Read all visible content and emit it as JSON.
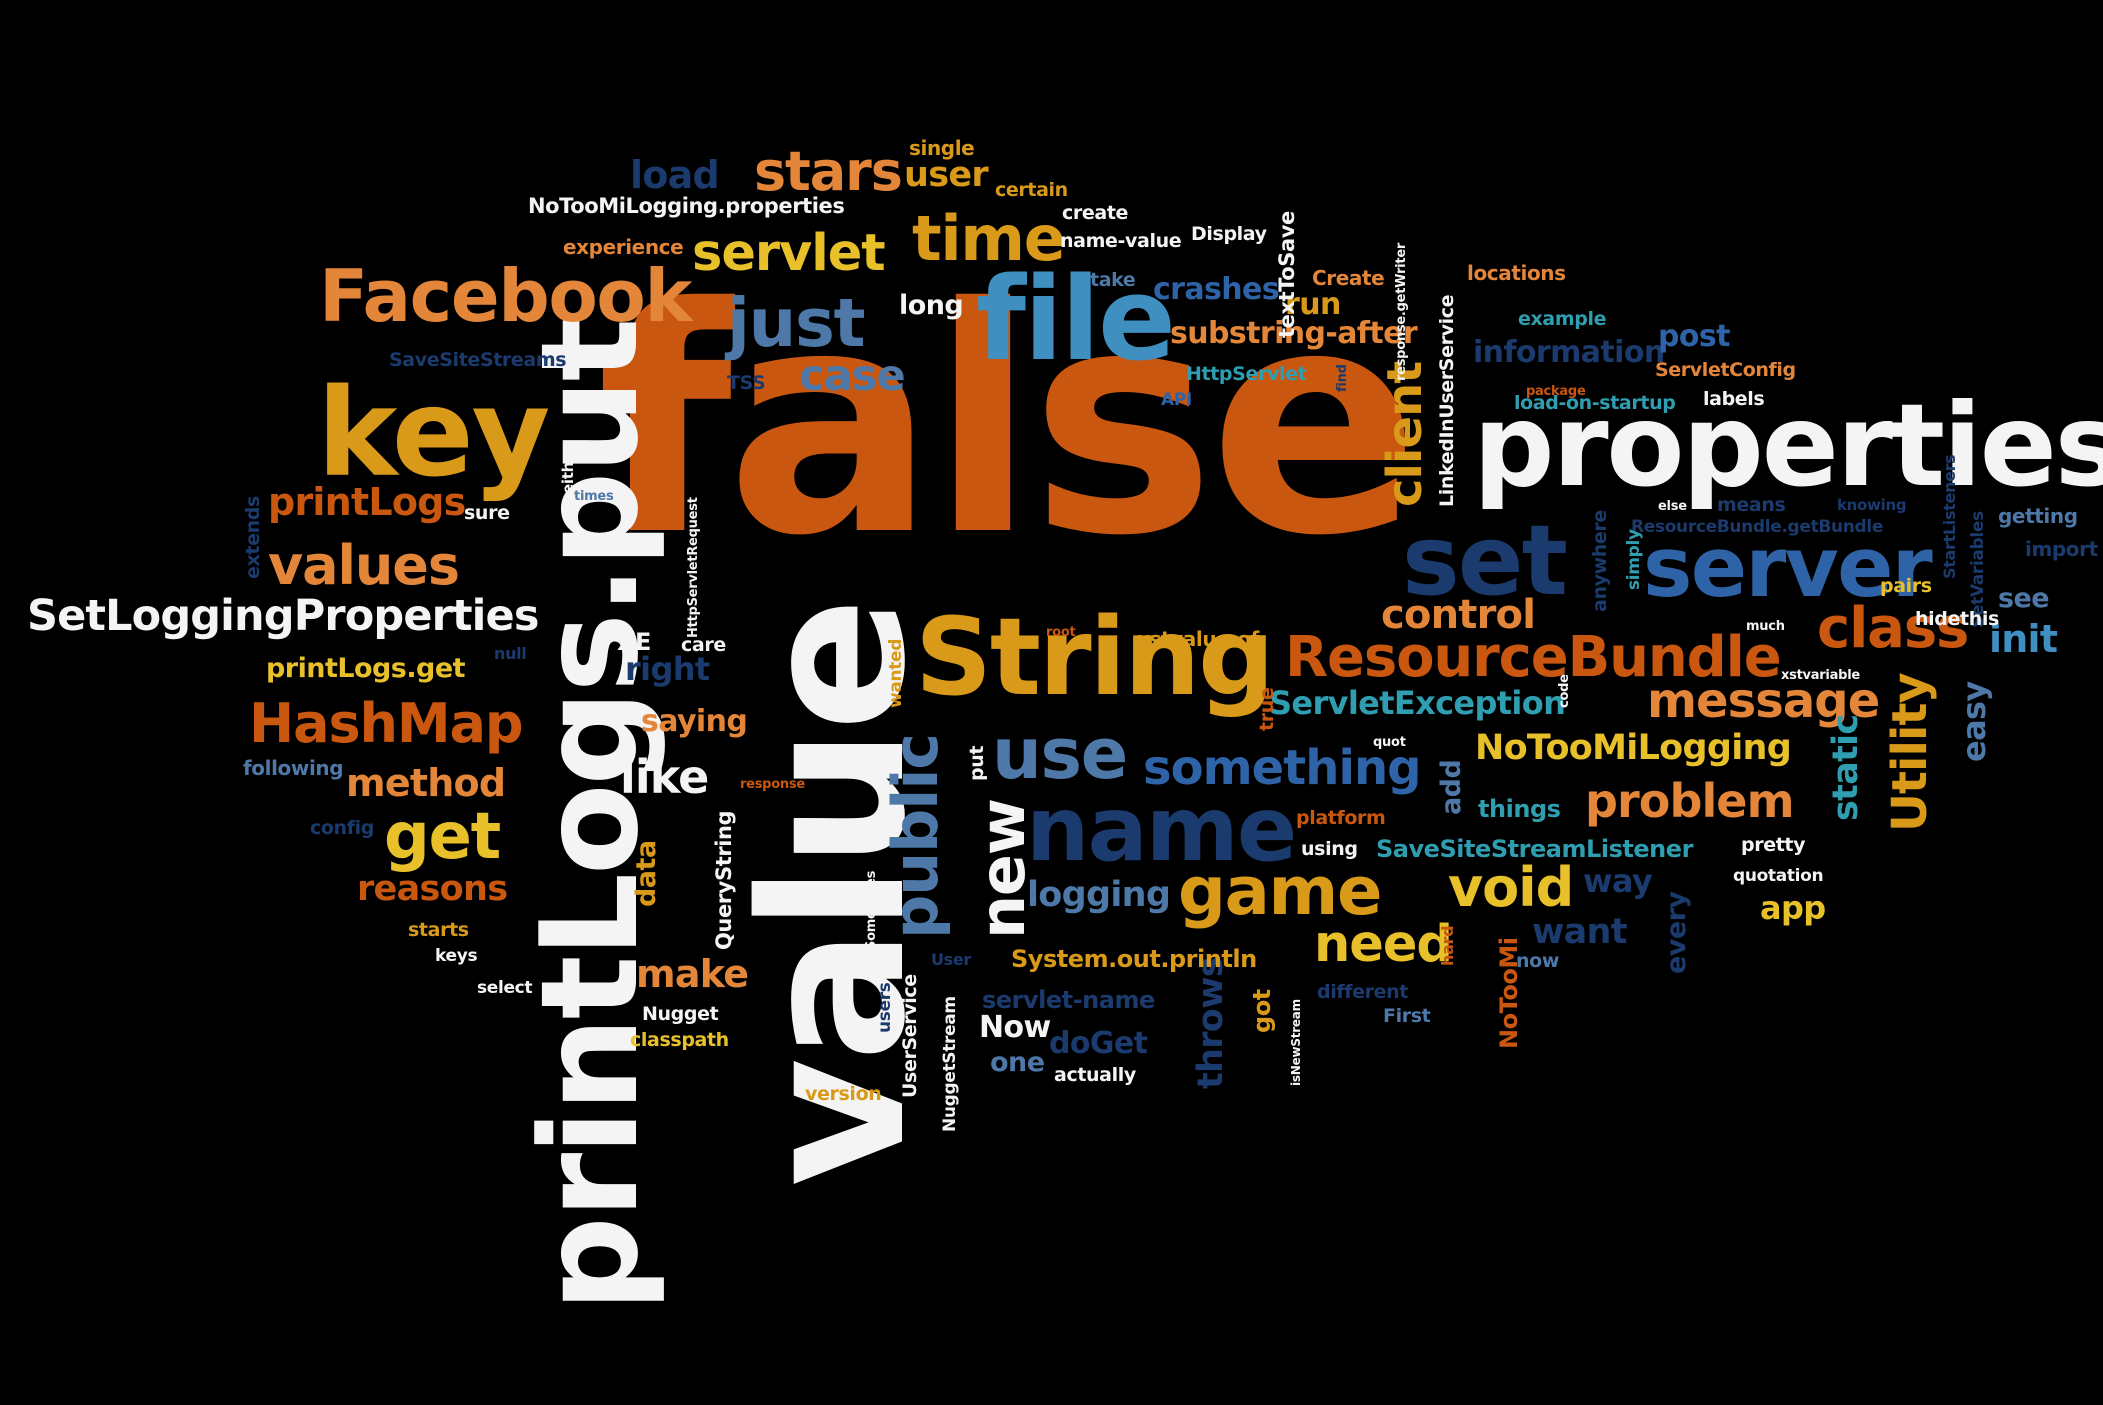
{
  "palette": {
    "orange": "#c9570f",
    "dark_orange": "#b34a0c",
    "light_orange": "#e4863a",
    "gold": "#d99a1a",
    "yellow": "#e8c02a",
    "white": "#f4f4f4",
    "navy": "#1b3a6d",
    "blue": "#2f63a8",
    "light_blue": "#3f8fc1",
    "teal": "#2f9eb0",
    "steel": "#4d78a8",
    "background": "#000000"
  },
  "words": [
    {
      "text": "false",
      "color": "orange"
    },
    {
      "text": "value",
      "color": "white"
    },
    {
      "text": "printLogs.put",
      "color": "white"
    },
    {
      "text": "properties",
      "color": "white"
    },
    {
      "text": "key",
      "color": "gold"
    },
    {
      "text": "file",
      "color": "light_blue"
    },
    {
      "text": "String",
      "color": "gold"
    },
    {
      "text": "name",
      "color": "navy"
    },
    {
      "text": "Facebook",
      "color": "light_orange"
    },
    {
      "text": "set",
      "color": "navy"
    },
    {
      "text": "server",
      "color": "blue"
    },
    {
      "text": "ResourceBundle",
      "color": "orange"
    },
    {
      "text": "game",
      "color": "gold"
    },
    {
      "text": "use",
      "color": "steel"
    },
    {
      "text": "just",
      "color": "steel"
    },
    {
      "text": "HashMap",
      "color": "orange"
    },
    {
      "text": "class",
      "color": "orange"
    },
    {
      "text": "time",
      "color": "gold"
    },
    {
      "text": "stars",
      "color": "light_orange"
    },
    {
      "text": "values",
      "color": "light_orange"
    },
    {
      "text": "get",
      "color": "yellow"
    },
    {
      "text": "servlet",
      "color": "yellow"
    },
    {
      "text": "SetLoggingProperties",
      "color": "white"
    },
    {
      "text": "public",
      "color": "steel"
    },
    {
      "text": "new",
      "color": "white"
    },
    {
      "text": "something",
      "color": "blue"
    },
    {
      "text": "message",
      "color": "light_orange"
    },
    {
      "text": "problem",
      "color": "light_orange"
    },
    {
      "text": "void",
      "color": "yellow"
    },
    {
      "text": "like",
      "color": "white"
    },
    {
      "text": "client",
      "color": "gold"
    },
    {
      "text": "control",
      "color": "light_orange"
    },
    {
      "text": "case",
      "color": "steel"
    },
    {
      "text": "need",
      "color": "yellow"
    },
    {
      "text": "Utility",
      "color": "gold"
    },
    {
      "text": "printLogs",
      "color": "orange"
    },
    {
      "text": "ServletException",
      "color": "teal"
    },
    {
      "text": "NoTooMiLogging",
      "color": "yellow"
    },
    {
      "text": "method",
      "color": "light_orange"
    },
    {
      "text": "reasons",
      "color": "orange"
    },
    {
      "text": "logging",
      "color": "steel"
    },
    {
      "text": "make",
      "color": "light_orange"
    },
    {
      "text": "init",
      "color": "light_blue"
    },
    {
      "text": "load",
      "color": "navy"
    },
    {
      "text": "user",
      "color": "gold"
    },
    {
      "text": "crashes",
      "color": "blue"
    },
    {
      "text": "run",
      "color": "gold"
    },
    {
      "text": "substring-after",
      "color": "light_orange"
    },
    {
      "text": "information",
      "color": "navy"
    },
    {
      "text": "post",
      "color": "blue"
    },
    {
      "text": "want",
      "color": "navy"
    },
    {
      "text": "way",
      "color": "navy"
    },
    {
      "text": "app",
      "color": "yellow"
    },
    {
      "text": "throws",
      "color": "navy"
    },
    {
      "text": "easy",
      "color": "steel"
    },
    {
      "text": "static",
      "color": "teal"
    },
    {
      "text": "right",
      "color": "navy"
    },
    {
      "text": "saying",
      "color": "light_orange"
    },
    {
      "text": "long",
      "color": "white"
    },
    {
      "text": "data",
      "color": "gold"
    },
    {
      "text": "doGet",
      "color": "navy"
    },
    {
      "text": "Now",
      "color": "white"
    },
    {
      "text": "one",
      "color": "steel"
    },
    {
      "text": "servlet-name",
      "color": "navy"
    },
    {
      "text": "things",
      "color": "teal"
    },
    {
      "text": "add",
      "color": "steel"
    },
    {
      "text": "see",
      "color": "steel"
    },
    {
      "text": "every",
      "color": "navy"
    },
    {
      "text": "SaveSiteStreamListener",
      "color": "teal"
    },
    {
      "text": "System.out.println",
      "color": "gold"
    },
    {
      "text": "printLogs.get",
      "color": "yellow"
    },
    {
      "text": "XE",
      "color": "white"
    },
    {
      "text": "NoTooMiLogging.properties",
      "color": "white"
    },
    {
      "text": "experience",
      "color": "light_orange"
    },
    {
      "text": "single",
      "color": "gold"
    },
    {
      "text": "certain",
      "color": "gold"
    },
    {
      "text": "create",
      "color": "white"
    },
    {
      "text": "name-value",
      "color": "white"
    },
    {
      "text": "Display",
      "color": "white"
    },
    {
      "text": "take",
      "color": "steel"
    },
    {
      "text": "textToSave",
      "color": "white"
    },
    {
      "text": "Create",
      "color": "light_orange"
    },
    {
      "text": "LinkedInUserService",
      "color": "white"
    },
    {
      "text": "response.getWriter",
      "color": "white"
    },
    {
      "text": "locations",
      "color": "light_orange"
    },
    {
      "text": "example",
      "color": "teal"
    },
    {
      "text": "SaveSiteStreams",
      "color": "navy"
    },
    {
      "text": "TSS",
      "color": "navy"
    },
    {
      "text": "HttpServlet",
      "color": "teal"
    },
    {
      "text": "API",
      "color": "blue"
    },
    {
      "text": "find",
      "color": "navy"
    },
    {
      "text": "ServletConfig",
      "color": "light_orange"
    },
    {
      "text": "package",
      "color": "orange"
    },
    {
      "text": "load-on-startup",
      "color": "teal"
    },
    {
      "text": "labels",
      "color": "white"
    },
    {
      "text": "StartListeners",
      "color": "navy"
    },
    {
      "text": "SetVariables",
      "color": "navy"
    },
    {
      "text": "either",
      "color": "white"
    },
    {
      "text": "times",
      "color": "steel"
    },
    {
      "text": "extends",
      "color": "navy"
    },
    {
      "text": "sure",
      "color": "white"
    },
    {
      "text": "HttpServletRequest",
      "color": "white"
    },
    {
      "text": "else",
      "color": "white"
    },
    {
      "text": "means",
      "color": "navy"
    },
    {
      "text": "knowing",
      "color": "navy"
    },
    {
      "text": "getting",
      "color": "steel"
    },
    {
      "text": "import",
      "color": "navy"
    },
    {
      "text": "ResourceBundle.getBundle",
      "color": "navy"
    },
    {
      "text": "anywhere",
      "color": "navy"
    },
    {
      "text": "simply",
      "color": "teal"
    },
    {
      "text": "pairs",
      "color": "yellow"
    },
    {
      "text": "hidethis",
      "color": "white"
    },
    {
      "text": "much",
      "color": "white"
    },
    {
      "text": "root",
      "color": "orange"
    },
    {
      "text": "xstvalue-of",
      "color": "gold"
    },
    {
      "text": "null",
      "color": "navy"
    },
    {
      "text": "care",
      "color": "white"
    },
    {
      "text": "wanted",
      "color": "gold"
    },
    {
      "text": "true",
      "color": "orange"
    },
    {
      "text": "xstvariable",
      "color": "white"
    },
    {
      "text": "code",
      "color": "white"
    },
    {
      "text": "quot",
      "color": "white"
    },
    {
      "text": "following",
      "color": "steel"
    },
    {
      "text": "response",
      "color": "orange"
    },
    {
      "text": "put",
      "color": "white"
    },
    {
      "text": "platform",
      "color": "orange"
    },
    {
      "text": "using",
      "color": "white"
    },
    {
      "text": "pretty",
      "color": "white"
    },
    {
      "text": "quotation",
      "color": "white"
    },
    {
      "text": "config",
      "color": "navy"
    },
    {
      "text": "QueryString",
      "color": "white"
    },
    {
      "text": "Sometimes",
      "color": "white"
    },
    {
      "text": "users",
      "color": "navy"
    },
    {
      "text": "User",
      "color": "navy"
    },
    {
      "text": "UserService",
      "color": "white"
    },
    {
      "text": "NuggetStream",
      "color": "white"
    },
    {
      "text": "starts",
      "color": "gold"
    },
    {
      "text": "keys",
      "color": "white"
    },
    {
      "text": "select",
      "color": "white"
    },
    {
      "text": "Nugget",
      "color": "white"
    },
    {
      "text": "classpath",
      "color": "yellow"
    },
    {
      "text": "version",
      "color": "gold"
    },
    {
      "text": "actually",
      "color": "white"
    },
    {
      "text": "got",
      "color": "gold"
    },
    {
      "text": "isNewStream",
      "color": "white"
    },
    {
      "text": "different",
      "color": "navy"
    },
    {
      "text": "First",
      "color": "steel"
    },
    {
      "text": "hard",
      "color": "orange"
    },
    {
      "text": "NoTooMi",
      "color": "orange"
    },
    {
      "text": "now",
      "color": "steel"
    }
  ]
}
